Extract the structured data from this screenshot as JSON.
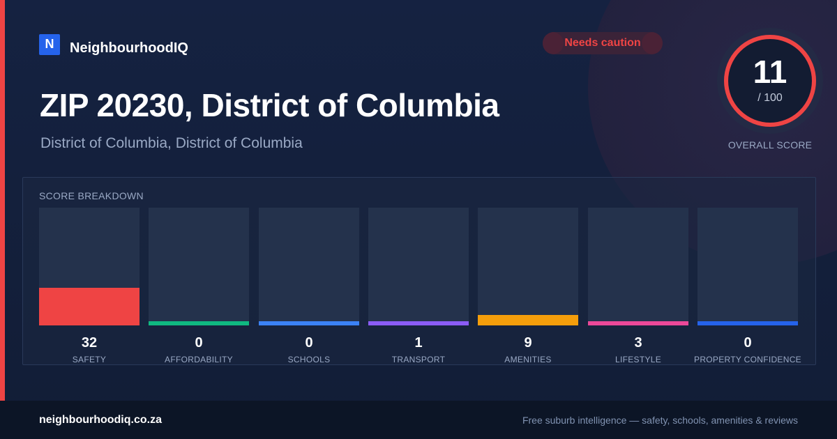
{
  "brand": {
    "logo_letter": "N",
    "name": "NeighbourhoodIQ"
  },
  "status": {
    "label": "Needs caution",
    "color": "#ef4444"
  },
  "header": {
    "title": "ZIP 20230, District of Columbia",
    "subtitle": "District of Columbia, District of Columbia"
  },
  "overall": {
    "score": "11",
    "max_label": "/ 100",
    "caption": "OVERALL SCORE",
    "fraction": 0.11,
    "ring_color": "#ef4444"
  },
  "breakdown": {
    "title": "SCORE BREAKDOWN",
    "items": [
      {
        "label": "SAFETY",
        "value": "32",
        "score": 32,
        "color": "#ef4444"
      },
      {
        "label": "AFFORDABILITY",
        "value": "0",
        "score": 0,
        "color": "#10b981"
      },
      {
        "label": "SCHOOLS",
        "value": "0",
        "score": 0,
        "color": "#3b82f6"
      },
      {
        "label": "TRANSPORT",
        "value": "1",
        "score": 1,
        "color": "#8b5cf6"
      },
      {
        "label": "AMENITIES",
        "value": "9",
        "score": 9,
        "color": "#f59e0b"
      },
      {
        "label": "LIFESTYLE",
        "value": "3",
        "score": 3,
        "color": "#ec4899"
      },
      {
        "label": "PROPERTY CONFIDENCE",
        "value": "0",
        "score": 0,
        "color": "#2563eb"
      }
    ]
  },
  "footer": {
    "domain": "neighbourhoodiq.co.za",
    "tagline": "Free suburb intelligence — safety, schools, amenities & reviews"
  }
}
